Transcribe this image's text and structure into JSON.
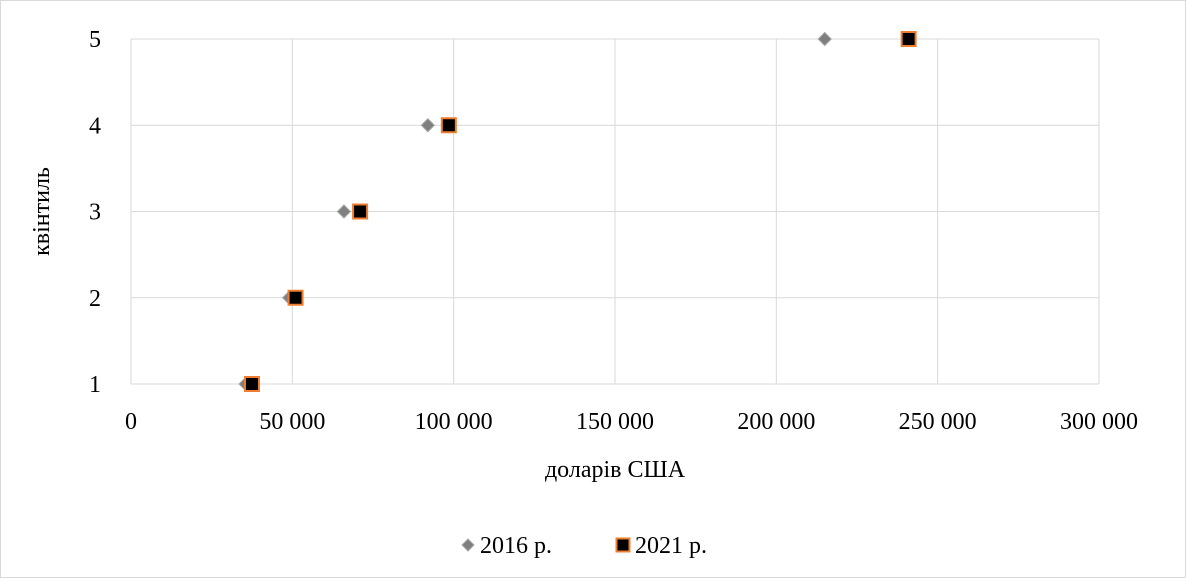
{
  "chart_data": {
    "type": "scatter",
    "xlabel": "доларів США",
    "ylabel": "квінтиль",
    "xlim": [
      0,
      300000
    ],
    "ylim": [
      1,
      5
    ],
    "x_ticks": [
      0,
      50000,
      100000,
      150000,
      200000,
      250000,
      300000
    ],
    "x_tick_labels": [
      "0",
      "50 000",
      "100 000",
      "150 000",
      "200 000",
      "250 000",
      "300 000"
    ],
    "y_ticks": [
      1,
      2,
      3,
      4,
      5
    ],
    "y_tick_labels": [
      "1",
      "2",
      "3",
      "4",
      "5"
    ],
    "grid": true,
    "legend_position": "bottom",
    "series": [
      {
        "name": "2016 р.",
        "marker": "diamond",
        "color": "#7f7f7f",
        "points": [
          {
            "x": 35500,
            "y": 1
          },
          {
            "x": 49000,
            "y": 2
          },
          {
            "x": 66000,
            "y": 3
          },
          {
            "x": 92000,
            "y": 4
          },
          {
            "x": 215000,
            "y": 5
          }
        ]
      },
      {
        "name": "2021 р.",
        "marker": "square",
        "color": "#000000",
        "edge_color": "#ed7d31",
        "points": [
          {
            "x": 37500,
            "y": 1
          },
          {
            "x": 51000,
            "y": 2
          },
          {
            "x": 71000,
            "y": 3
          },
          {
            "x": 98500,
            "y": 4
          },
          {
            "x": 241000,
            "y": 5
          }
        ]
      }
    ]
  }
}
